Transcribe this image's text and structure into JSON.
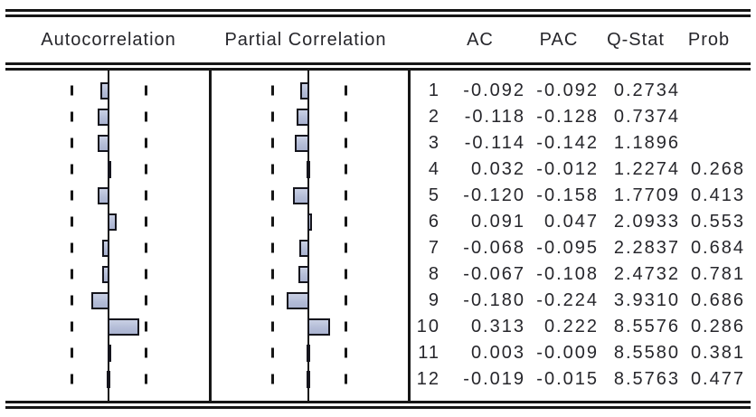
{
  "headers": {
    "autocorrelation": "Autocorrelation",
    "partial_correlation": "Partial Correlation",
    "ac": "AC",
    "pac": "PAC",
    "qstat": "Q-Stat",
    "prob": "Prob"
  },
  "rows": [
    {
      "lag": "1",
      "ac": "-0.092",
      "pac": "-0.092",
      "qstat": "0.2734",
      "prob": ""
    },
    {
      "lag": "2",
      "ac": "-0.118",
      "pac": "-0.128",
      "qstat": "0.7374",
      "prob": ""
    },
    {
      "lag": "3",
      "ac": "-0.114",
      "pac": "-0.142",
      "qstat": "1.1896",
      "prob": ""
    },
    {
      "lag": "4",
      "ac": "0.032",
      "pac": "-0.012",
      "qstat": "1.2274",
      "prob": "0.268"
    },
    {
      "lag": "5",
      "ac": "-0.120",
      "pac": "-0.158",
      "qstat": "1.7709",
      "prob": "0.413"
    },
    {
      "lag": "6",
      "ac": "0.091",
      "pac": "0.047",
      "qstat": "2.0933",
      "prob": "0.553"
    },
    {
      "lag": "7",
      "ac": "-0.068",
      "pac": "-0.095",
      "qstat": "2.2837",
      "prob": "0.684"
    },
    {
      "lag": "8",
      "ac": "-0.067",
      "pac": "-0.108",
      "qstat": "2.4732",
      "prob": "0.781"
    },
    {
      "lag": "9",
      "ac": "-0.180",
      "pac": "-0.224",
      "qstat": "3.9310",
      "prob": "0.686"
    },
    {
      "lag": "10",
      "ac": "0.313",
      "pac": "0.222",
      "qstat": "8.5576",
      "prob": "0.286"
    },
    {
      "lag": "11",
      "ac": "0.003",
      "pac": "-0.009",
      "qstat": "8.5580",
      "prob": "0.381"
    },
    {
      "lag": "12",
      "ac": "-0.019",
      "pac": "-0.015",
      "qstat": "8.5763",
      "prob": "0.477"
    }
  ],
  "chart_data": {
    "type": "bar",
    "orientation": "horizontal",
    "panels": [
      "Autocorrelation",
      "Partial Correlation"
    ],
    "lags": [
      1,
      2,
      3,
      4,
      5,
      6,
      7,
      8,
      9,
      10,
      11,
      12
    ],
    "series": [
      {
        "name": "AC",
        "values": [
          -0.092,
          -0.118,
          -0.114,
          0.032,
          -0.12,
          0.091,
          -0.068,
          -0.067,
          -0.18,
          0.313,
          0.003,
          -0.019
        ]
      },
      {
        "name": "PAC",
        "values": [
          -0.092,
          -0.128,
          -0.142,
          -0.012,
          -0.158,
          0.047,
          -0.095,
          -0.108,
          -0.224,
          0.222,
          -0.009,
          -0.015
        ]
      }
    ],
    "qstat": [
      0.2734,
      0.7374,
      1.1896,
      1.2274,
      1.7709,
      2.0933,
      2.2837,
      2.4732,
      3.931,
      8.5576,
      8.558,
      8.5763
    ],
    "prob": [
      null,
      null,
      null,
      0.268,
      0.413,
      0.553,
      0.684,
      0.781,
      0.686,
      0.286,
      0.381,
      0.477
    ],
    "significance_band": 0.366,
    "xlim": [
      -0.37,
      0.37
    ],
    "bar_color": "#b4bdd8",
    "bar_border_color": "#15151d",
    "grid": false
  }
}
